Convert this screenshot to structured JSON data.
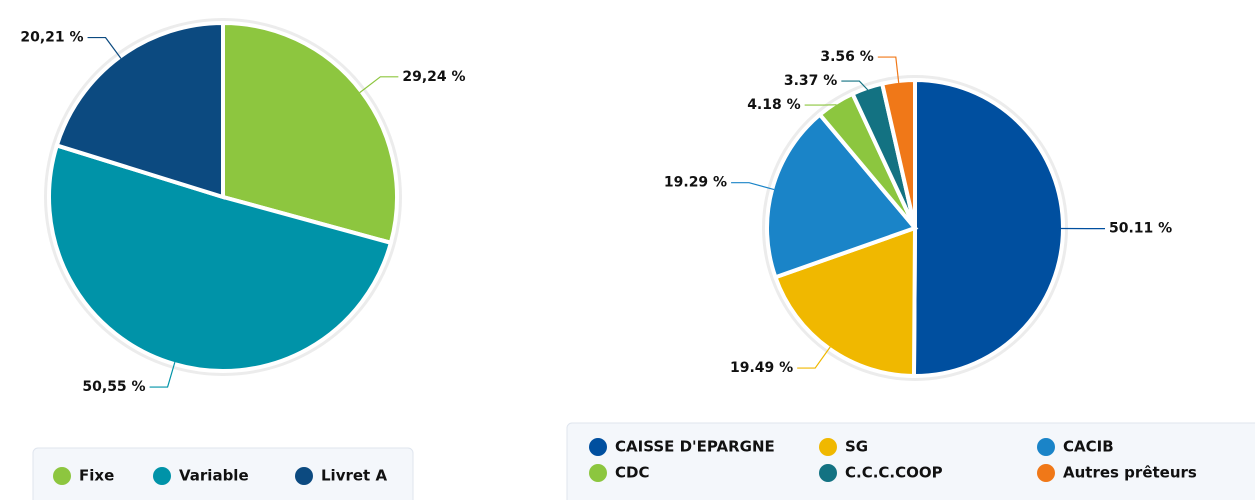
{
  "chart_data": [
    {
      "type": "pie",
      "categories": [
        "Fixe",
        "Variable",
        "Livret A"
      ],
      "values": [
        29.24,
        50.55,
        20.21
      ],
      "value_labels": [
        "29,24 %",
        "50,55 %",
        "20,21 %"
      ],
      "colors": [
        "#8dc63f",
        "#0093a8",
        "#0c4a80"
      ]
    },
    {
      "type": "pie",
      "categories": [
        "CAISSE D'EPARGNE",
        "SG",
        "CACIB",
        "CDC",
        "C.C.C.COOP",
        "Autres prêteurs"
      ],
      "values": [
        50.11,
        19.49,
        19.29,
        4.18,
        3.37,
        3.56
      ],
      "value_labels": [
        "50.11 %",
        "19.49 %",
        "19.29 %",
        "4.18 %",
        "3.37 %",
        "3.56 %"
      ],
      "colors": [
        "#004f9f",
        "#f0b800",
        "#1a84c8",
        "#8cc63f",
        "#137282",
        "#f07818"
      ]
    }
  ]
}
